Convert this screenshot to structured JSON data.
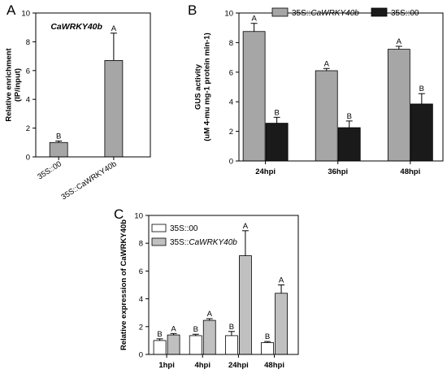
{
  "chart_data": [
    {
      "panel": "A",
      "type": "bar",
      "title": "CaWRKY40b",
      "ylabel": "Relative enrichment (IP/input)",
      "ylim": [
        0,
        10
      ],
      "yticks": [
        0,
        2,
        4,
        6,
        8,
        10
      ],
      "categories": [
        "35S::00",
        "35S::CaWRKY40b"
      ],
      "series": [
        {
          "values": [
            1.0,
            6.7
          ],
          "errors": [
            0.1,
            1.9
          ],
          "letters": [
            "B",
            "A"
          ],
          "color": "#a6a6a6"
        }
      ]
    },
    {
      "panel": "B",
      "type": "bar",
      "ylabel": "GUS activity (uM 4-mu mg-1 protein min-1)",
      "ylim": [
        0,
        10
      ],
      "yticks": [
        0,
        2,
        4,
        6,
        8,
        10
      ],
      "categories": [
        "24hpi",
        "36hpi",
        "48hpi"
      ],
      "legend_position": "top",
      "series": [
        {
          "name_parts": [
            "35S::",
            "CaWRKY40b"
          ],
          "values": [
            8.75,
            6.1,
            7.55
          ],
          "errors": [
            0.55,
            0.15,
            0.2
          ],
          "letters": [
            "A",
            "A",
            "A"
          ],
          "color": "#a6a6a6"
        },
        {
          "name_parts": [
            "35S::00",
            ""
          ],
          "values": [
            2.55,
            2.25,
            3.85
          ],
          "errors": [
            0.4,
            0.45,
            0.7
          ],
          "letters": [
            "B",
            "B",
            "B"
          ],
          "color": "#1a1a1a"
        }
      ]
    },
    {
      "panel": "C",
      "type": "bar",
      "ylabel": "Relative expression of CaWRKY40b",
      "ylim": [
        0,
        10
      ],
      "yticks": [
        0,
        2,
        4,
        6,
        8,
        10
      ],
      "categories": [
        "1hpi",
        "4hpi",
        "24hpi",
        "48hpi"
      ],
      "legend_position": "top-left",
      "series": [
        {
          "name_parts": [
            "35S::00",
            ""
          ],
          "values": [
            1.0,
            1.35,
            1.35,
            0.85
          ],
          "errors": [
            0.12,
            0.1,
            0.3,
            0.08
          ],
          "letters": [
            "B",
            "B",
            "B",
            "B"
          ],
          "color": "#ffffff"
        },
        {
          "name_parts": [
            "35S::",
            "CaWRKY40b"
          ],
          "values": [
            1.4,
            2.45,
            7.1,
            4.4
          ],
          "errors": [
            0.1,
            0.12,
            1.8,
            0.6
          ],
          "letters": [
            "A",
            "A",
            "A",
            "A"
          ],
          "color": "#c0c0c0"
        }
      ]
    }
  ]
}
